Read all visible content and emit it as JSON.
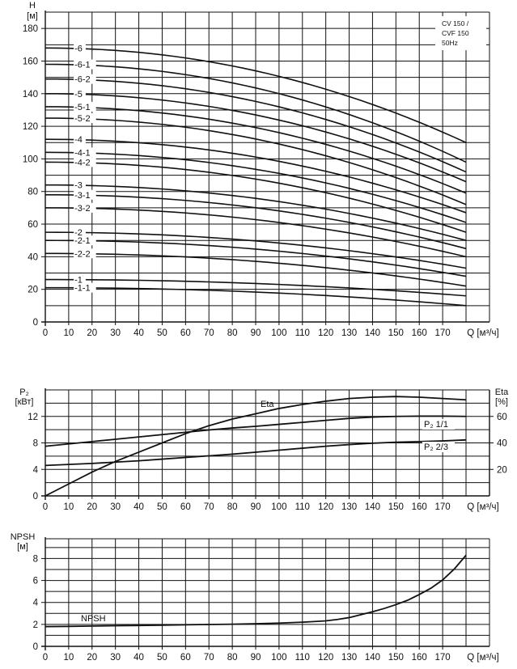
{
  "chart_data": [
    {
      "id": "head",
      "type": "line",
      "title": "",
      "ylabel": "H",
      "yunit": "[м]",
      "xlabel": "Q [м³/ч]",
      "xlim": [
        0,
        180
      ],
      "ylim": [
        0,
        190
      ],
      "grid": true,
      "xticks": [
        0,
        10,
        20,
        30,
        40,
        50,
        60,
        70,
        80,
        90,
        100,
        110,
        120,
        130,
        140,
        150,
        160,
        170
      ],
      "yticks": [
        0,
        20,
        40,
        60,
        80,
        100,
        120,
        140,
        160,
        180
      ],
      "note": [
        "CV 150 /",
        "CVF 150",
        "50Hz"
      ],
      "series": [
        {
          "name": "-6",
          "shutoff": 168,
          "end": 110
        },
        {
          "name": "-6-1",
          "shutoff": 158,
          "end": 98
        },
        {
          "name": "-6-2",
          "shutoff": 149,
          "end": 92
        },
        {
          "name": "-5",
          "shutoff": 140,
          "end": 86
        },
        {
          "name": "-5-1",
          "shutoff": 132,
          "end": 79
        },
        {
          "name": "-5-2",
          "shutoff": 125,
          "end": 72
        },
        {
          "name": "-4",
          "shutoff": 112,
          "end": 67
        },
        {
          "name": "-4-1",
          "shutoff": 104,
          "end": 61
        },
        {
          "name": "-4-2",
          "shutoff": 98,
          "end": 55
        },
        {
          "name": "-3",
          "shutoff": 84,
          "end": 50
        },
        {
          "name": "-3-1",
          "shutoff": 78,
          "end": 45
        },
        {
          "name": "-3-2",
          "shutoff": 70,
          "end": 40
        },
        {
          "name": "-2",
          "shutoff": 55,
          "end": 33
        },
        {
          "name": "-2-1",
          "shutoff": 50,
          "end": 28
        },
        {
          "name": "-2-2",
          "shutoff": 42,
          "end": 22
        },
        {
          "name": "-1",
          "shutoff": 26,
          "end": 16
        },
        {
          "name": "-1-1",
          "shutoff": 21,
          "end": 10
        }
      ]
    },
    {
      "id": "power",
      "type": "line",
      "title": "",
      "ylabel": "P₂",
      "yunit": "[кВт]",
      "y2label": "Eta",
      "y2unit": "[%]",
      "xlabel": "Q [м³/ч]",
      "xlim": [
        0,
        180
      ],
      "ylim": [
        0,
        16
      ],
      "y2lim": [
        0,
        80
      ],
      "grid": true,
      "xticks": [
        0,
        10,
        20,
        30,
        40,
        50,
        60,
        70,
        80,
        90,
        100,
        110,
        120,
        130,
        140,
        150,
        160,
        170
      ],
      "yticks": [
        0,
        4,
        8,
        12
      ],
      "y2ticks": [
        20,
        40,
        60
      ],
      "series": [
        {
          "name": "Eta",
          "axis": "right",
          "x": [
            0,
            10,
            20,
            30,
            40,
            50,
            60,
            70,
            80,
            90,
            100,
            110,
            120,
            130,
            140,
            150,
            160,
            170,
            180
          ],
          "y": [
            0,
            9,
            18,
            26,
            33,
            40,
            47,
            53,
            58,
            62,
            66,
            69,
            71.5,
            73.5,
            74.5,
            75,
            74.5,
            73.5,
            72.5
          ]
        },
        {
          "name": "P₂ 1/1",
          "label": "P₂ 1/1",
          "axis": "left",
          "x": [
            0,
            10,
            20,
            30,
            40,
            50,
            60,
            70,
            80,
            90,
            100,
            110,
            120,
            130,
            140,
            150,
            160,
            170,
            180
          ],
          "y": [
            7.5,
            7.85,
            8.2,
            8.55,
            8.9,
            9.25,
            9.6,
            9.95,
            10.25,
            10.5,
            10.8,
            11.1,
            11.4,
            11.7,
            11.9,
            12.0,
            12.05,
            12.05,
            12.0
          ]
        },
        {
          "name": "P₂ 2/3",
          "label": "P₂ 2/3",
          "axis": "left",
          "x": [
            0,
            10,
            20,
            30,
            40,
            50,
            60,
            70,
            80,
            90,
            100,
            110,
            120,
            130,
            140,
            150,
            160,
            170,
            180
          ],
          "y": [
            4.6,
            4.75,
            4.9,
            5.1,
            5.3,
            5.55,
            5.8,
            6.05,
            6.3,
            6.6,
            6.9,
            7.2,
            7.5,
            7.75,
            7.95,
            8.1,
            8.2,
            8.3,
            8.45
          ]
        }
      ]
    },
    {
      "id": "npsh",
      "type": "line",
      "title": "",
      "ylabel": "NPSH",
      "yunit": "[м]",
      "xlabel": "Q [м³/ч]",
      "xlim": [
        0,
        180
      ],
      "ylim": [
        0,
        9.8
      ],
      "grid": true,
      "xticks": [
        0,
        10,
        20,
        30,
        40,
        50,
        60,
        70,
        80,
        90,
        100,
        110,
        120,
        130,
        140,
        150,
        160,
        170
      ],
      "yticks": [
        0,
        2,
        4,
        6,
        8
      ],
      "series": [
        {
          "name": "NPSH",
          "label": "NPSH",
          "x": [
            0,
            10,
            20,
            30,
            40,
            50,
            60,
            70,
            80,
            90,
            100,
            110,
            120,
            125,
            130,
            135,
            140,
            145,
            150,
            155,
            160,
            165,
            170,
            175,
            180
          ],
          "y": [
            1.8,
            1.82,
            1.85,
            1.88,
            1.9,
            1.93,
            1.96,
            1.99,
            2.02,
            2.06,
            2.12,
            2.2,
            2.32,
            2.45,
            2.62,
            2.88,
            3.15,
            3.45,
            3.8,
            4.2,
            4.72,
            5.3,
            6.05,
            7.05,
            8.3
          ]
        }
      ]
    }
  ]
}
